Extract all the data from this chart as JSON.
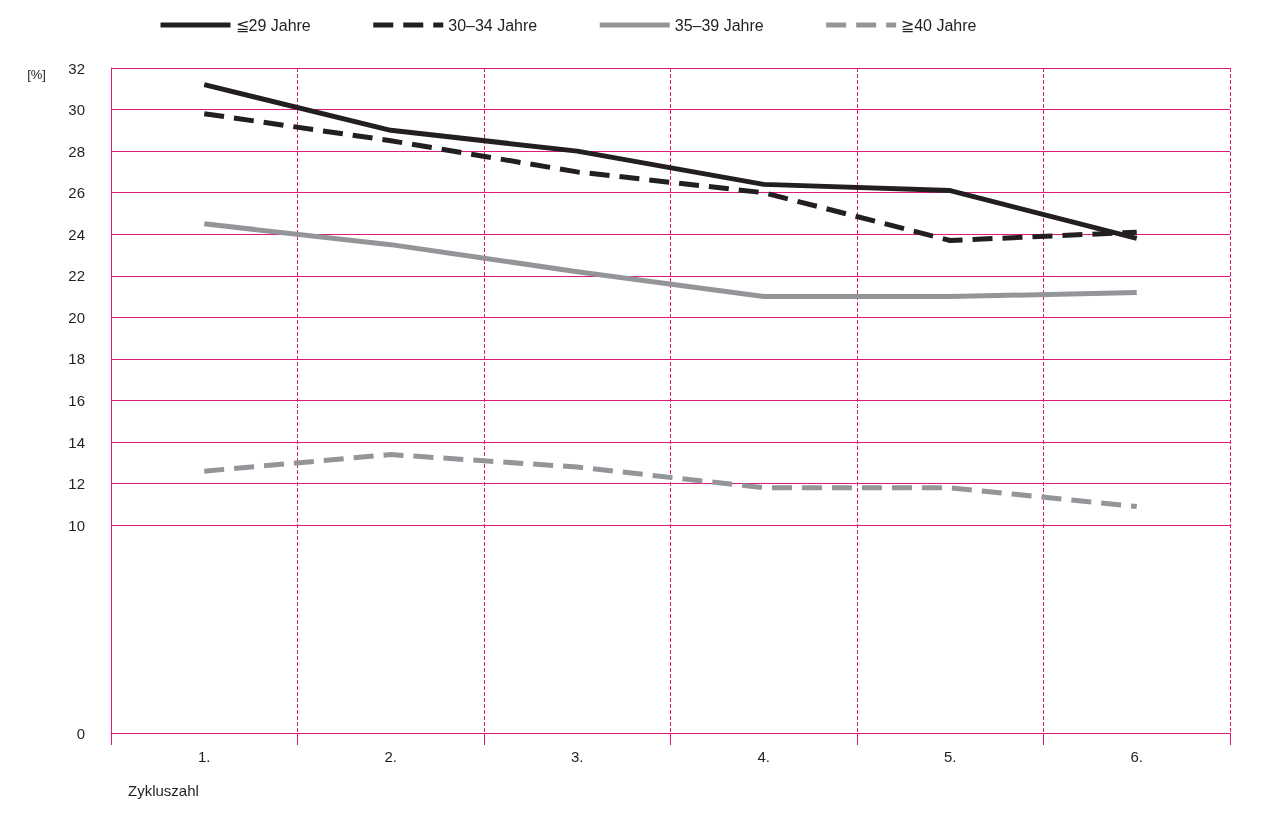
{
  "chart_data": {
    "type": "line",
    "ylabel": "[%]",
    "xlabel": "Zykluszahl",
    "categories": [
      "1.",
      "2.",
      "3.",
      "4.",
      "5.",
      "6."
    ],
    "ylim": [
      0,
      32
    ],
    "yticks": [
      0,
      10,
      12,
      14,
      16,
      18,
      20,
      22,
      24,
      26,
      28,
      30,
      32
    ],
    "grid": true,
    "legend": "top",
    "marker": "none",
    "series": [
      {
        "name": "≦29 Jahre",
        "color": "#231f20",
        "line_style": "solid",
        "values": [
          31.2,
          29.0,
          28.0,
          26.4,
          26.1,
          23.8
        ]
      },
      {
        "name": "30–34 Jahre",
        "color": "#231f20",
        "line_style": "dashed",
        "values": [
          29.8,
          28.5,
          27.0,
          26.0,
          23.7,
          24.1
        ]
      },
      {
        "name": "35–39 Jahre",
        "color": "#939598",
        "line_style": "solid",
        "values": [
          24.5,
          23.5,
          22.2,
          21.0,
          21.0,
          21.2
        ]
      },
      {
        "name": "≧40 Jahre",
        "color": "#939598",
        "line_style": "dashed",
        "values": [
          12.6,
          13.4,
          12.8,
          11.8,
          11.8,
          10.9
        ]
      }
    ]
  }
}
